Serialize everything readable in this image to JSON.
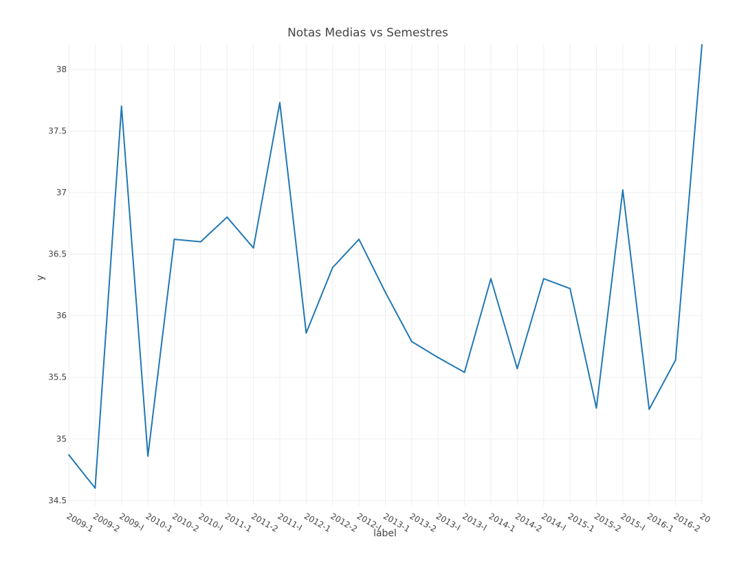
{
  "chart_data": {
    "type": "line",
    "title": "Notas Medias vs Semestres",
    "xlabel": "label",
    "ylabel": "y",
    "ylim": [
      34.46,
      38.2
    ],
    "yticks": [
      34.5,
      35,
      35.5,
      36,
      36.5,
      37,
      37.5,
      38
    ],
    "ytick_labels": [
      "34.5",
      "35",
      "35.5",
      "36",
      "36.5",
      "37",
      "37.5",
      "38"
    ],
    "grid": true,
    "legend": "none",
    "line_color": "#1f77b4",
    "categories": [
      "2009-1",
      "2009-2",
      "2009-I",
      "2010-1",
      "2010-2",
      "2010-I",
      "2011-1",
      "2011-2",
      "2011-I",
      "2012-1",
      "2012-2",
      "2012-I",
      "2013-1",
      "2013-2",
      "2013-I",
      "2013-I",
      "2014-1",
      "2014-2",
      "2014-I",
      "2015-1",
      "2015-2",
      "2015-I",
      "2016-1",
      "2016-2",
      "20"
    ],
    "values": [
      34.87,
      34.6,
      37.7,
      34.86,
      36.62,
      36.6,
      36.8,
      36.55,
      37.73,
      35.86,
      36.39,
      36.62,
      36.19,
      35.79,
      35.66,
      35.54,
      36.3,
      35.57,
      36.3,
      36.22,
      35.25,
      37.02,
      35.24,
      35.64,
      38.2
    ]
  }
}
